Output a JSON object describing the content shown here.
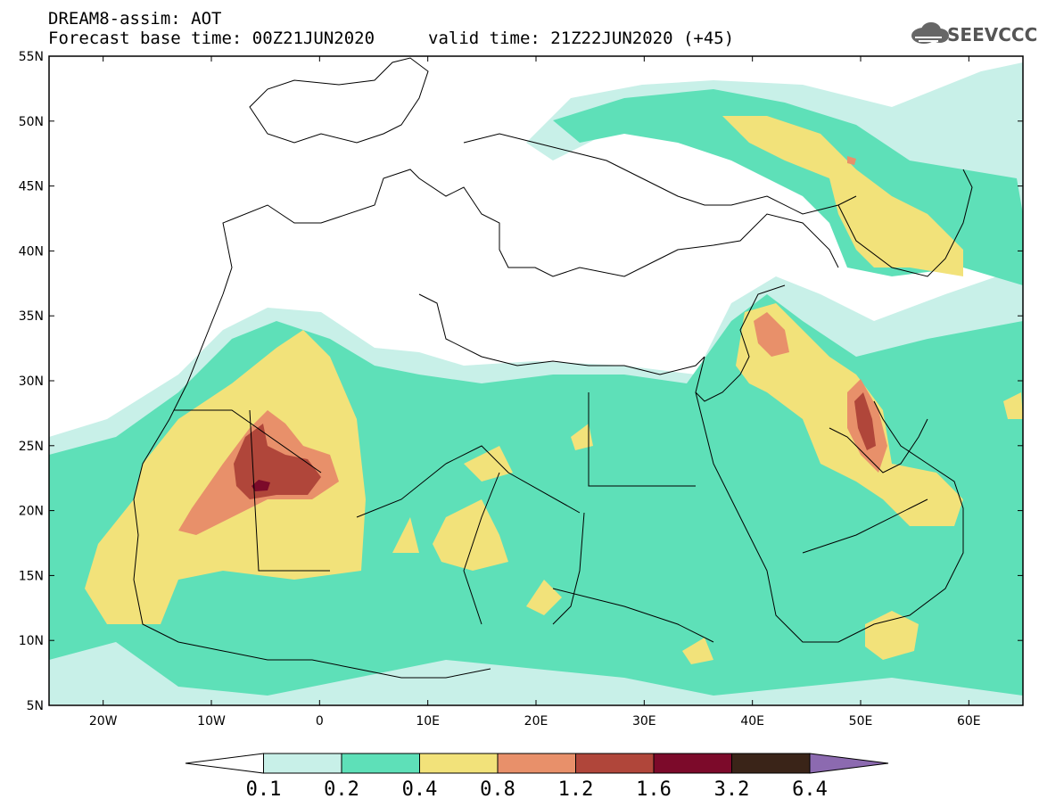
{
  "header": {
    "line1": "DREAM8-assim: AOT",
    "line2": "Forecast base time: 00Z21JUN2020",
    "line3": "valid time: 21Z22JUN2020 (+45)",
    "logo_text": "SEEVCCC"
  },
  "map": {
    "lon_range": [
      -25,
      65
    ],
    "lat_range": [
      5,
      55
    ],
    "x_tick_labels": [
      "20W",
      "10W",
      "0",
      "10E",
      "20E",
      "30E",
      "40E",
      "50E",
      "60E"
    ],
    "y_tick_labels": [
      "55N",
      "50N",
      "45N",
      "40N",
      "35N",
      "30N",
      "25N",
      "20N",
      "15N",
      "10N",
      "5N"
    ]
  },
  "colorbar": {
    "labels": [
      "0.1",
      "0.2",
      "0.4",
      "0.8",
      "1.2",
      "1.6",
      "3.2",
      "6.4"
    ],
    "colors": [
      "#c8f0e8",
      "#5ee0b8",
      "#f2e27a",
      "#e8906a",
      "#b0463a",
      "#7c0a2a",
      "#3a2418",
      "#8c6ab0"
    ]
  },
  "icons": {
    "logo": "cloud-logo-icon"
  }
}
